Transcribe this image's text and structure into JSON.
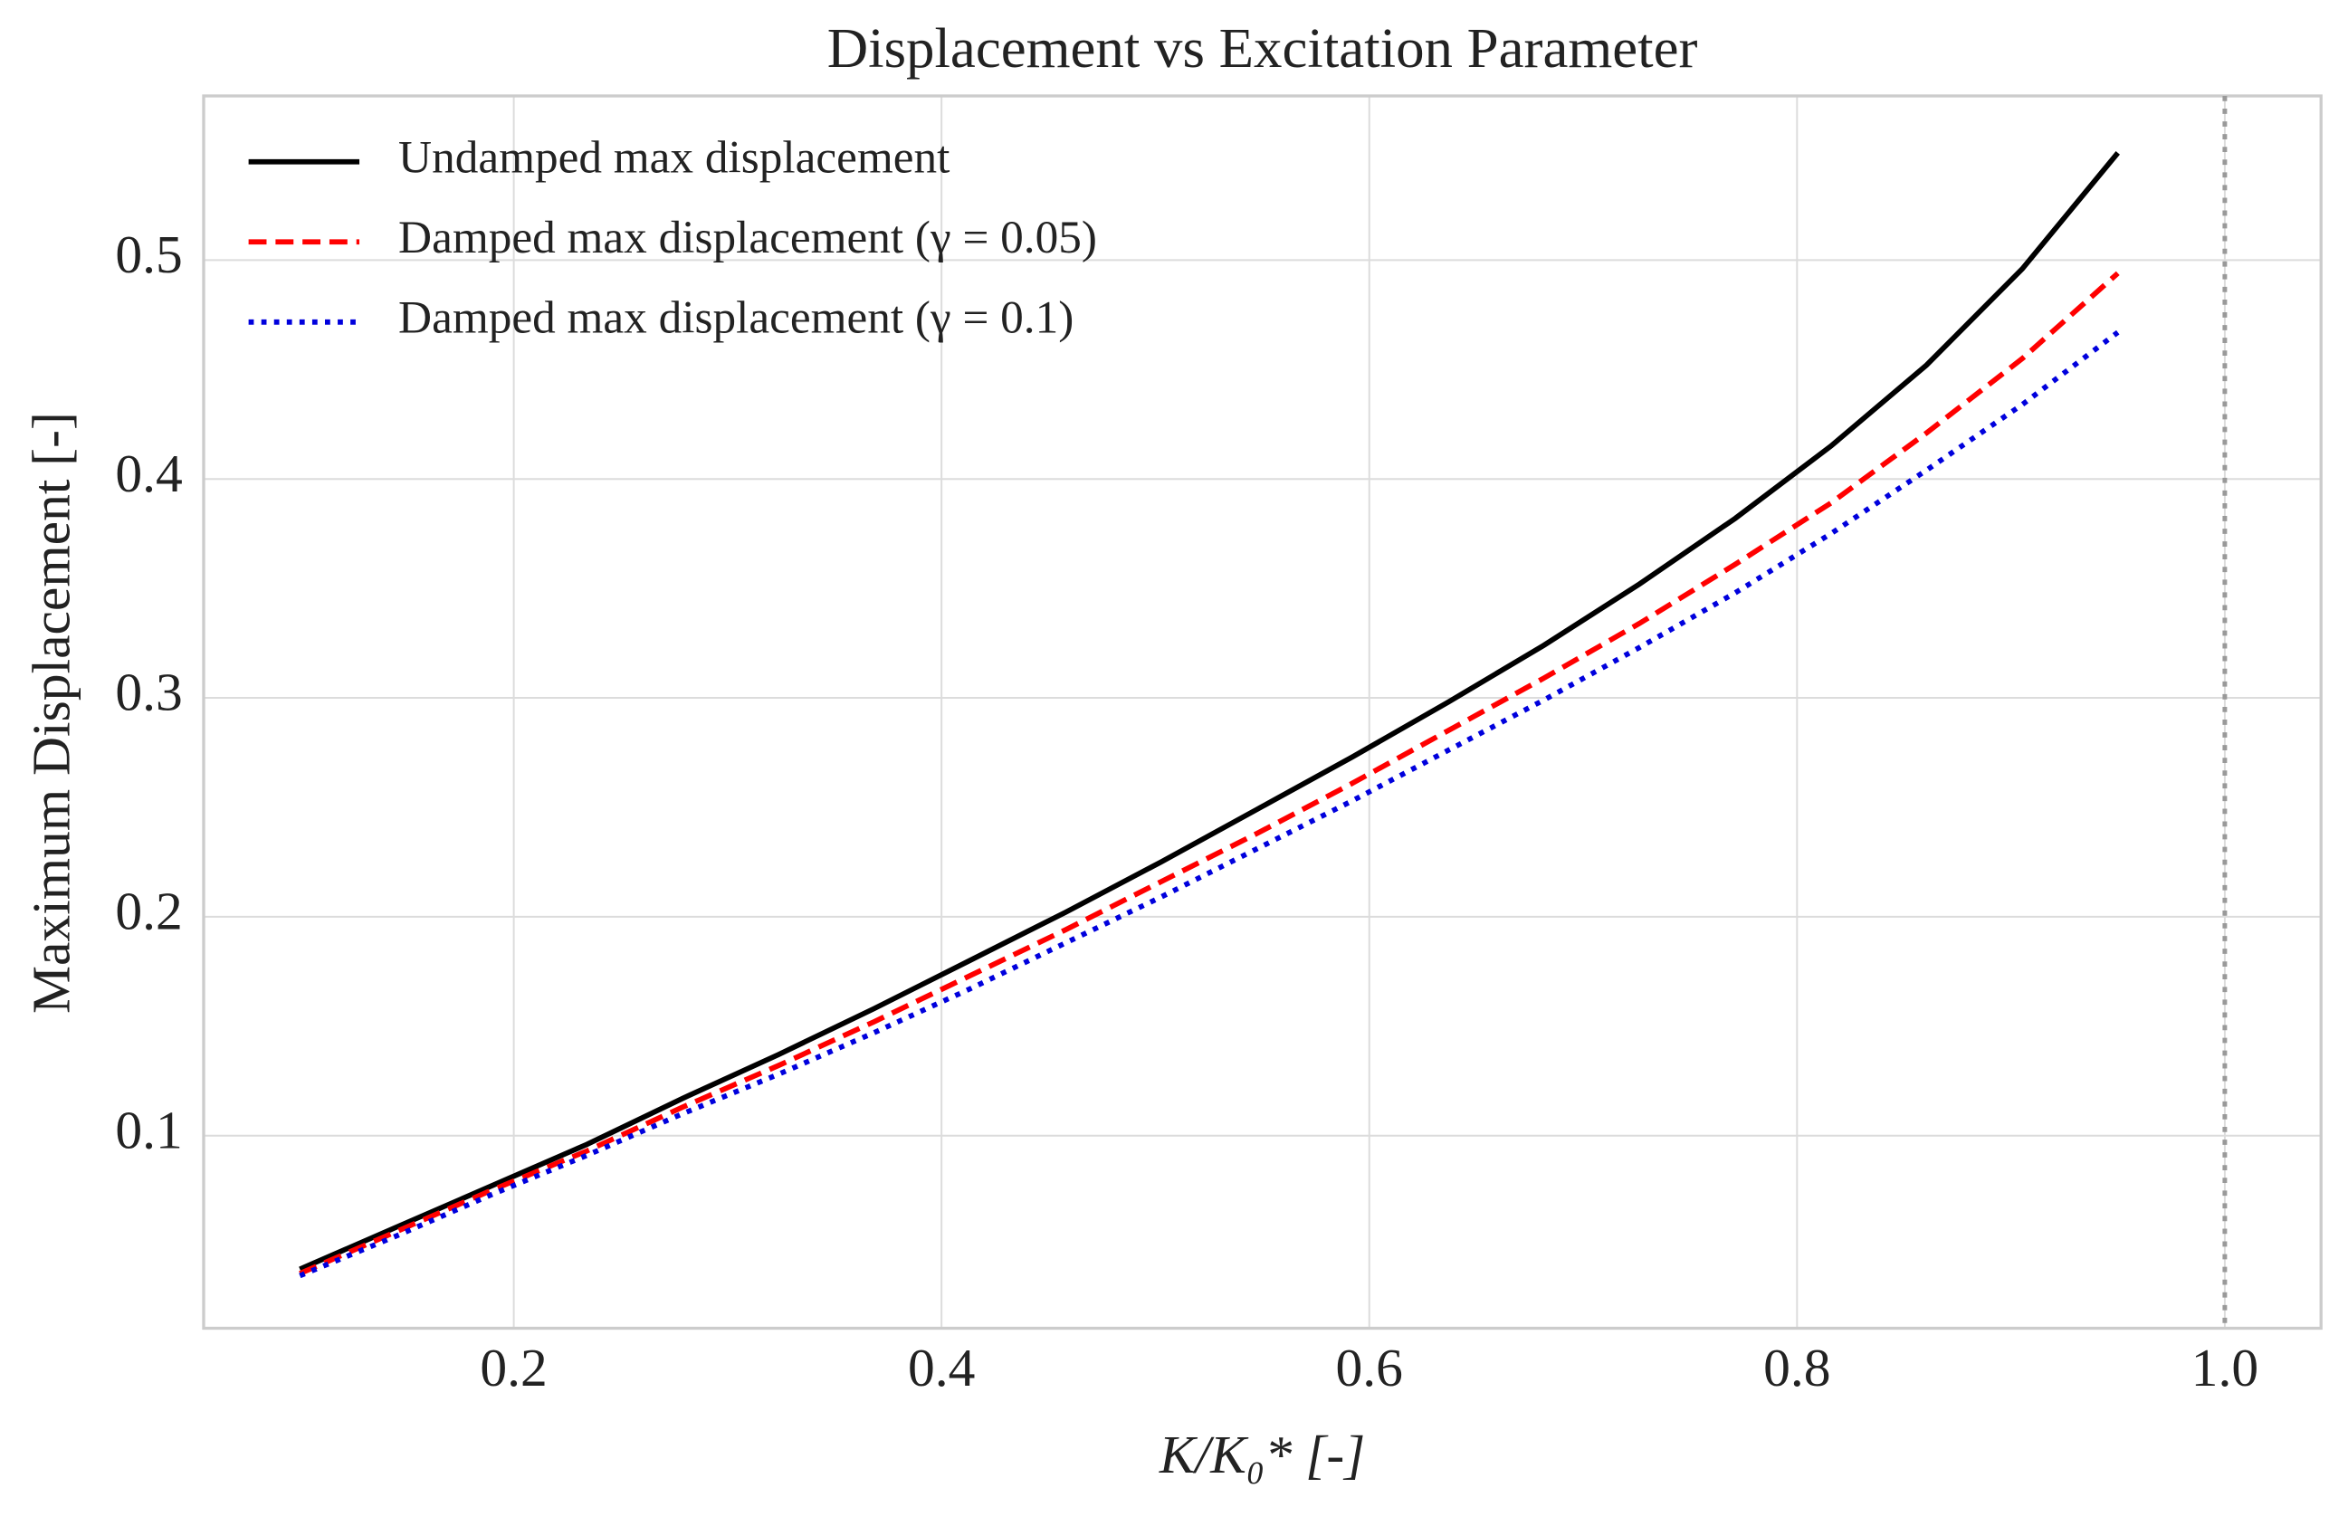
{
  "chart_data": {
    "type": "line",
    "title": "Displacement vs Excitation Parameter",
    "xlabel": "K/K₀* [-]",
    "ylabel": "Maximum Displacement [-]",
    "x": [
      0.1,
      0.1447,
      0.1895,
      0.2342,
      0.2789,
      0.3237,
      0.3684,
      0.4132,
      0.4579,
      0.5026,
      0.5474,
      0.5921,
      0.6368,
      0.6816,
      0.7263,
      0.7711,
      0.8158,
      0.8605,
      0.9053,
      0.95
    ],
    "series": [
      {
        "name": "Undamped max displacement",
        "color": "#000000",
        "dash": "solid",
        "values": [
          0.039,
          0.058,
          0.077,
          0.096,
          0.117,
          0.137,
          0.158,
          0.18,
          0.202,
          0.225,
          0.249,
          0.273,
          0.298,
          0.324,
          0.352,
          0.382,
          0.415,
          0.452,
          0.496,
          0.549
        ]
      },
      {
        "name": "Damped max displacement (γ = 0.05)",
        "color": "#ff0000",
        "dash": "dashed",
        "values": [
          0.037,
          0.056,
          0.075,
          0.093,
          0.113,
          0.132,
          0.152,
          0.173,
          0.194,
          0.216,
          0.238,
          0.261,
          0.285,
          0.309,
          0.334,
          0.361,
          0.389,
          0.421,
          0.455,
          0.494
        ]
      },
      {
        "name": "Damped max displacement (γ = 0.1)",
        "color": "#0000dd",
        "dash": "dotted",
        "values": [
          0.036,
          0.054,
          0.073,
          0.091,
          0.11,
          0.128,
          0.147,
          0.167,
          0.188,
          0.209,
          0.231,
          0.253,
          0.276,
          0.299,
          0.323,
          0.348,
          0.375,
          0.404,
          0.434,
          0.467
        ]
      }
    ],
    "vline": {
      "x": 1.0,
      "color": "#999999",
      "dash": "dotted"
    },
    "xlim": [
      0.055,
      1.045
    ],
    "ylim": [
      0.012,
      0.575
    ],
    "xticks": [
      0.2,
      0.4,
      0.6,
      0.8,
      {
        "value": 1,
        "label": "1.0"
      }
    ],
    "yticks": [
      0.1,
      0.2,
      0.3,
      0.4,
      0.5
    ],
    "grid": true,
    "legend": "upper left"
  }
}
